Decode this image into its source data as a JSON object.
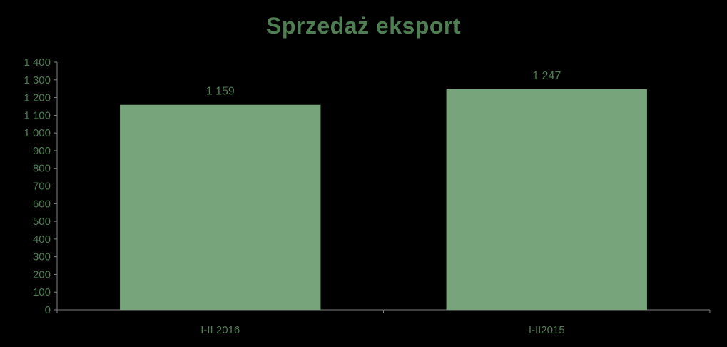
{
  "chart_data": {
    "type": "bar",
    "title": "Sprzedaż eksport",
    "categories": [
      "I-II 2016",
      "I-II2015"
    ],
    "values": [
      1159,
      1247
    ],
    "data_labels": [
      "1 159",
      "1 247"
    ],
    "ylim": [
      0,
      1400
    ],
    "ytick_step": 100,
    "ytick_labels": [
      "0",
      "100",
      "200",
      "300",
      "400",
      "500",
      "600",
      "700",
      "800",
      "900",
      "1 000",
      "1 100",
      "1 200",
      "1 300",
      "1 400"
    ],
    "grid": false,
    "legend": "none",
    "bar_color": "#77a47b",
    "text_color": "#4e7e52",
    "axis_color": "#808080"
  }
}
